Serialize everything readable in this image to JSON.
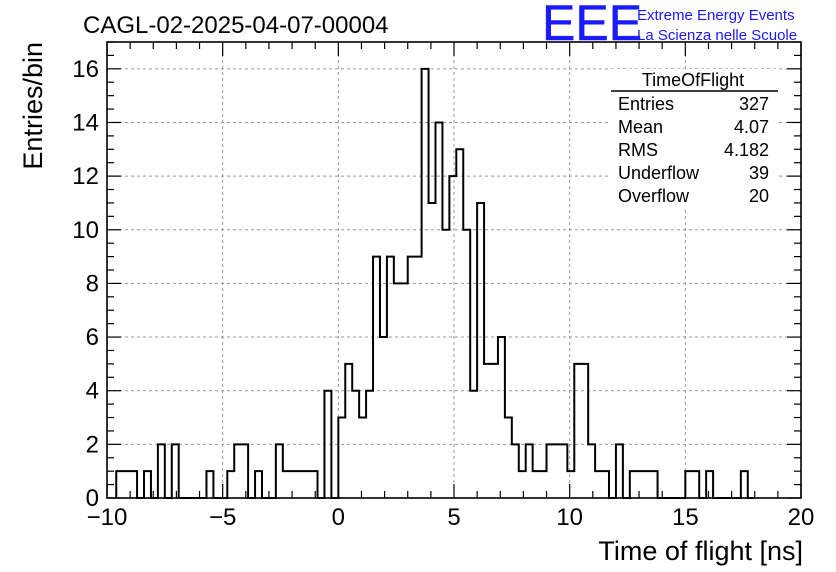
{
  "chart_data": {
    "type": "histogram",
    "title": "CAGL-02-2025-04-07-00004",
    "xlabel": "Time of flight [ns]",
    "ylabel": "Entries/bin",
    "xlim": [
      -10,
      20
    ],
    "ylim": [
      0,
      17
    ],
    "bin_width": 0.3,
    "bin_start": -9.6,
    "xticks": [
      -10,
      -5,
      0,
      5,
      10,
      15,
      20
    ],
    "yticks": [
      0,
      2,
      4,
      6,
      8,
      10,
      12,
      14,
      16
    ],
    "grid": true,
    "values": [
      1,
      1,
      1,
      0,
      1,
      0,
      2,
      0,
      2,
      0,
      0,
      0,
      0,
      1,
      0,
      0,
      1,
      2,
      2,
      0,
      1,
      0,
      0,
      2,
      1,
      1,
      1,
      1,
      1,
      0,
      4,
      0,
      3,
      5,
      4,
      3,
      4,
      9,
      6,
      9,
      8,
      8,
      9,
      9,
      16,
      11,
      14,
      10,
      12,
      13,
      10,
      4,
      11,
      5,
      5,
      6,
      3,
      2,
      1,
      2,
      1,
      1,
      2,
      2,
      2,
      1,
      5,
      5,
      2,
      1,
      1,
      0,
      2,
      0,
      1,
      1,
      1,
      1,
      0,
      0,
      0,
      0,
      1,
      1,
      0,
      1,
      0,
      0,
      0,
      0,
      1,
      0
    ],
    "stats_box": {
      "title": "TimeOfFlight",
      "rows": [
        {
          "label": "Entries",
          "value": "327"
        },
        {
          "label": "Mean",
          "value": "4.07"
        },
        {
          "label": "RMS",
          "value": "4.182"
        },
        {
          "label": "Underflow",
          "value": "39"
        },
        {
          "label": "Overflow",
          "value": "20"
        }
      ]
    }
  },
  "logo": {
    "text": "EEE",
    "line1": "Extreme Energy Events",
    "line2": "La Scienza nelle Scuole",
    "color": "#1a1aff"
  }
}
